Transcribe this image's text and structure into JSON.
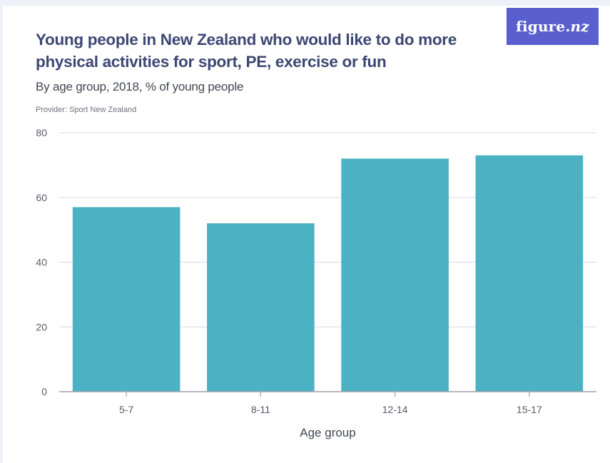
{
  "logo": {
    "text": "figure.",
    "suffix": "nz"
  },
  "title": "Young people in New Zealand who would like to do more physical activities for sport, PE, exercise or fun",
  "subtitle": "By age group, 2018, % of young people",
  "provider": "Provider: Sport New Zealand",
  "colors": {
    "bar": "#4ab2c2",
    "grid": "#e3e5ea",
    "axis": "#a0a4ac"
  },
  "chart_data": {
    "type": "bar",
    "categories": [
      "5-7",
      "8-11",
      "12-14",
      "15-17"
    ],
    "values": [
      57,
      52,
      72,
      73
    ],
    "xlabel": "Age group",
    "ylabel": "",
    "ylim": [
      0,
      80
    ],
    "yticks": [
      0,
      20,
      40,
      60,
      80
    ],
    "grid": true,
    "legend": "none"
  }
}
